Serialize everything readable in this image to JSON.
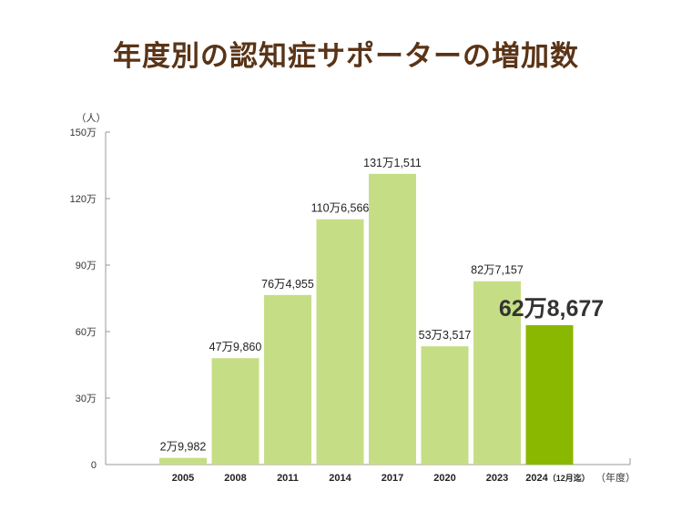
{
  "title": "年度別の認知症サポーターの増加数",
  "chart_data": {
    "type": "bar",
    "title": "年度別の認知症サポーターの増加数",
    "y_unit_label": "（人）",
    "x_unit_label": "（年度）",
    "categories": [
      "2005",
      "2008",
      "2011",
      "2014",
      "2017",
      "2020",
      "2023",
      "2024"
    ],
    "category_notes": [
      "",
      "",
      "",
      "",
      "",
      "",
      "",
      "（12月迄）"
    ],
    "values": [
      29982,
      479860,
      764955,
      1106566,
      1311511,
      533517,
      827157,
      628677
    ],
    "data_labels": [
      "2万9,982",
      "47万9,860",
      "76万4,955",
      "110万6,566",
      "131万1,511",
      "53万3,517",
      "82万7,157",
      "62万8,677"
    ],
    "highlight_index": 7,
    "ylim": [
      0,
      1500000
    ],
    "yticks": [
      0,
      300000,
      600000,
      900000,
      1200000,
      1500000
    ],
    "ytick_labels": [
      "0",
      "30万",
      "60万",
      "90万",
      "120万",
      "150万"
    ],
    "colors": {
      "bar": "#c5de85",
      "bar_highlight": "#8ab800",
      "title": "#5a3417"
    }
  }
}
